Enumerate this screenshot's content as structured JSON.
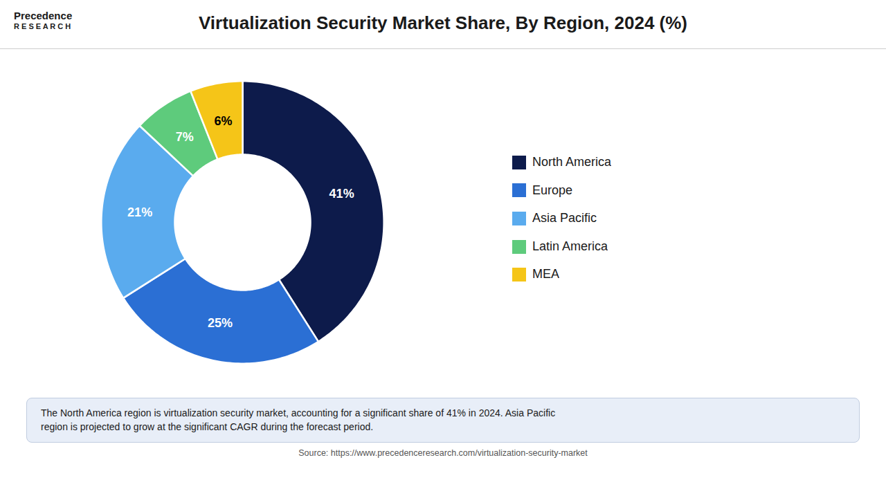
{
  "chart_data": {
    "type": "pie",
    "title": "Virtualization Security Market Share, By Region, 2024 (%)",
    "categories": [
      "North America",
      "Europe",
      "Asia Pacific",
      "Latin America",
      "MEA"
    ],
    "values": [
      41,
      25,
      21,
      7,
      6
    ],
    "value_labels": [
      "41%",
      "25%",
      "21%",
      "7%",
      "6%"
    ],
    "colors": [
      "#0d1b4b",
      "#2b6fd4",
      "#5aabee",
      "#5ecb7c",
      "#f5c518"
    ],
    "data_labels": true,
    "legend": "right",
    "annotations": [
      "Precedence",
      "R E S E A R C H",
      "The North America region is virtualization security market, accounting for a significant share of 41% in 2024. Asia Pacific\nregion is projected to grow at the significant CAGR during the forecast period.",
      "Source: https://www.precedenceresearch.com/virtualization-security-market"
    ]
  }
}
